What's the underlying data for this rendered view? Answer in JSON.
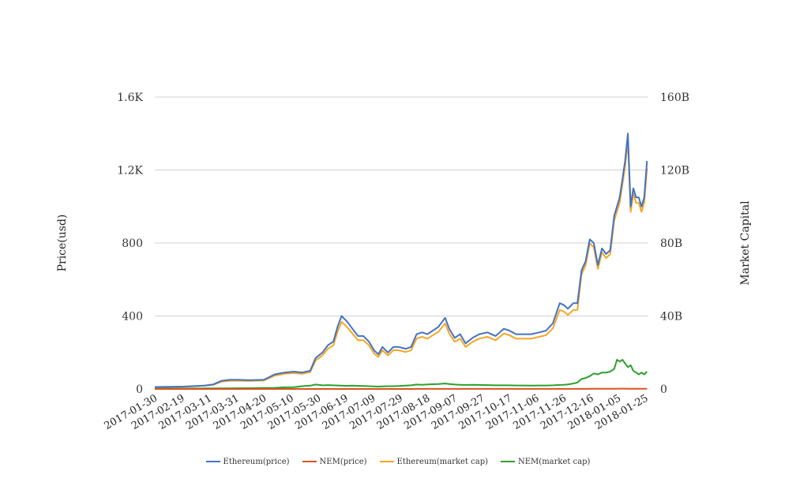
{
  "chart_data": {
    "type": "line",
    "xlabel": "",
    "ylabel_left": "Price(usd)",
    "ylabel_right": "Market Capital",
    "ylim_left": [
      0,
      1600
    ],
    "ylim_right": [
      0,
      160000000000
    ],
    "yticks_left": [
      "0",
      "400",
      "800",
      "1.2K",
      "1.6K"
    ],
    "yticks_right": [
      "0",
      "40B",
      "80B",
      "120B",
      "160B"
    ],
    "x_ticks": [
      "2017-01-30",
      "2017-02-19",
      "2017-03-11",
      "2017-03-31",
      "2017-04-20",
      "2017-05-10",
      "2017-05-30",
      "2017-06-19",
      "2017-07-09",
      "2017-07-29",
      "2017-08-18",
      "2017-09-07",
      "2017-09-27",
      "2017-10-17",
      "2017-11-06",
      "2017-11-26",
      "2017-12-16",
      "2018-01-05",
      "2018-01-25"
    ],
    "x_range": [
      "2017-01-30",
      "2018-01-27"
    ],
    "grid": true,
    "legend_position": "bottom-center",
    "x": [
      "2017-01-30",
      "2017-02-10",
      "2017-02-20",
      "2017-03-01",
      "2017-03-08",
      "2017-03-14",
      "2017-03-20",
      "2017-03-26",
      "2017-04-01",
      "2017-04-10",
      "2017-04-20",
      "2017-04-28",
      "2017-05-05",
      "2017-05-12",
      "2017-05-18",
      "2017-05-24",
      "2017-05-28",
      "2017-06-02",
      "2017-06-06",
      "2017-06-10",
      "2017-06-13",
      "2017-06-16",
      "2017-06-20",
      "2017-06-24",
      "2017-06-28",
      "2017-07-02",
      "2017-07-06",
      "2017-07-10",
      "2017-07-13",
      "2017-07-16",
      "2017-07-20",
      "2017-07-24",
      "2017-07-28",
      "2017-08-02",
      "2017-08-06",
      "2017-08-10",
      "2017-08-14",
      "2017-08-18",
      "2017-08-22",
      "2017-08-26",
      "2017-08-31",
      "2017-09-03",
      "2017-09-07",
      "2017-09-11",
      "2017-09-15",
      "2017-09-20",
      "2017-09-25",
      "2017-10-01",
      "2017-10-07",
      "2017-10-13",
      "2017-10-17",
      "2017-10-22",
      "2017-10-28",
      "2017-11-02",
      "2017-11-08",
      "2017-11-13",
      "2017-11-18",
      "2017-11-23",
      "2017-11-26",
      "2017-11-29",
      "2017-12-03",
      "2017-12-06",
      "2017-12-09",
      "2017-12-12",
      "2017-12-15",
      "2017-12-18",
      "2017-12-21",
      "2017-12-24",
      "2017-12-27",
      "2017-12-30",
      "2018-01-02",
      "2018-01-04",
      "2018-01-06",
      "2018-01-08",
      "2018-01-10",
      "2018-01-12",
      "2018-01-14",
      "2018-01-16",
      "2018-01-18",
      "2018-01-20",
      "2018-01-22",
      "2018-01-24",
      "2018-01-26"
    ],
    "series": [
      {
        "name": "Ethereum(price)",
        "color": "#4472c4",
        "axis": "left",
        "values": [
          11,
          12,
          13,
          16,
          19,
          25,
          45,
          50,
          50,
          48,
          50,
          80,
          90,
          95,
          90,
          100,
          170,
          200,
          240,
          260,
          340,
          400,
          370,
          330,
          290,
          290,
          260,
          210,
          190,
          230,
          200,
          230,
          230,
          220,
          230,
          300,
          310,
          300,
          320,
          340,
          390,
          330,
          280,
          300,
          250,
          280,
          300,
          310,
          290,
          330,
          320,
          300,
          300,
          300,
          310,
          320,
          360,
          470,
          460,
          440,
          470,
          470,
          650,
          700,
          820,
          800,
          680,
          770,
          740,
          760,
          950,
          1000,
          1050,
          1150,
          1250,
          1400,
          1000,
          1100,
          1050,
          1050,
          1000,
          1050,
          1250
        ]
      },
      {
        "name": "NEM(price)",
        "color": "#d9531e",
        "axis": "left",
        "values": [
          0.1,
          0.1,
          0.1,
          0.1,
          0.1,
          0.1,
          0.1,
          0.1,
          0.1,
          0.1,
          0.2,
          0.2,
          0.2,
          0.2,
          0.2,
          0.2,
          0.2,
          0.2,
          0.2,
          0.2,
          0.2,
          0.2,
          0.2,
          0.2,
          0.2,
          0.2,
          0.2,
          0.2,
          0.2,
          0.2,
          0.2,
          0.2,
          0.2,
          0.2,
          0.2,
          0.3,
          0.3,
          0.3,
          0.3,
          0.3,
          0.3,
          0.3,
          0.3,
          0.3,
          0.3,
          0.3,
          0.3,
          0.3,
          0.3,
          0.3,
          0.3,
          0.3,
          0.3,
          0.3,
          0.3,
          0.3,
          0.3,
          0.3,
          0.3,
          0.3,
          0.3,
          0.3,
          0.5,
          0.6,
          0.7,
          0.8,
          0.8,
          0.9,
          0.9,
          1.0,
          1.3,
          1.5,
          1.6,
          1.7,
          1.6,
          1.5,
          1.3,
          1.2,
          1.1,
          1.0,
          0.9,
          0.9,
          1.0
        ]
      },
      {
        "name": "Ethereum(market cap)",
        "color": "#f5a623",
        "axis": "right",
        "values": [
          1000000000,
          1100000000,
          1200000000,
          1500000000,
          1800000000,
          2300000000,
          4000000000,
          4500000000,
          4500000000,
          4400000000,
          4600000000,
          7300000000,
          8300000000,
          8700000000,
          8300000000,
          9200000000,
          15600000000,
          18400000000,
          22100000000,
          23900000000,
          31300000000,
          36800000000,
          34000000000,
          30400000000,
          26700000000,
          26700000000,
          24000000000,
          19300000000,
          17500000000,
          21200000000,
          18400000000,
          21200000000,
          21200000000,
          20300000000,
          21200000000,
          27600000000,
          28600000000,
          27600000000,
          29500000000,
          31300000000,
          35900000000,
          30400000000,
          25800000000,
          27600000000,
          23000000000,
          25800000000,
          27600000000,
          28600000000,
          26700000000,
          30400000000,
          29500000000,
          27600000000,
          27600000000,
          27600000000,
          28600000000,
          29500000000,
          33200000000,
          43300000000,
          42400000000,
          40500000000,
          43300000000,
          43300000000,
          62800000000,
          67800000000,
          79800000000,
          77800000000,
          65800000000,
          74900000000,
          71800000000,
          73900000000,
          92300000000,
          97300000000,
          102000000000,
          112000000000,
          122000000000,
          136000000000,
          97000000000,
          107000000000,
          102000000000,
          102000000000,
          97000000000,
          102000000000,
          121000000000
        ]
      },
      {
        "name": "NEM(market cap)",
        "color": "#2ca02c",
        "axis": "right",
        "values": [
          200000000,
          200000000,
          200000000,
          250000000,
          300000000,
          300000000,
          300000000,
          350000000,
          400000000,
          450000000,
          500000000,
          600000000,
          900000000,
          1000000000,
          1500000000,
          1800000000,
          2400000000,
          2000000000,
          2100000000,
          2000000000,
          1900000000,
          1800000000,
          1700000000,
          1800000000,
          1700000000,
          1600000000,
          1500000000,
          1400000000,
          1300000000,
          1400000000,
          1500000000,
          1500000000,
          1600000000,
          1800000000,
          2000000000,
          2400000000,
          2300000000,
          2500000000,
          2600000000,
          2700000000,
          3000000000,
          2700000000,
          2400000000,
          2300000000,
          2200000000,
          2300000000,
          2200000000,
          2100000000,
          2000000000,
          2000000000,
          2000000000,
          1900000000,
          1900000000,
          1800000000,
          1900000000,
          1900000000,
          2000000000,
          2200000000,
          2300000000,
          2500000000,
          3000000000,
          3500000000,
          5500000000,
          6000000000,
          7000000000,
          8500000000,
          8000000000,
          9000000000,
          9000000000,
          9500000000,
          11000000000,
          16000000000,
          15000000000,
          16000000000,
          14000000000,
          12000000000,
          13000000000,
          10000000000,
          9000000000,
          8000000000,
          9000000000,
          8000000000,
          9500000000
        ]
      }
    ]
  }
}
